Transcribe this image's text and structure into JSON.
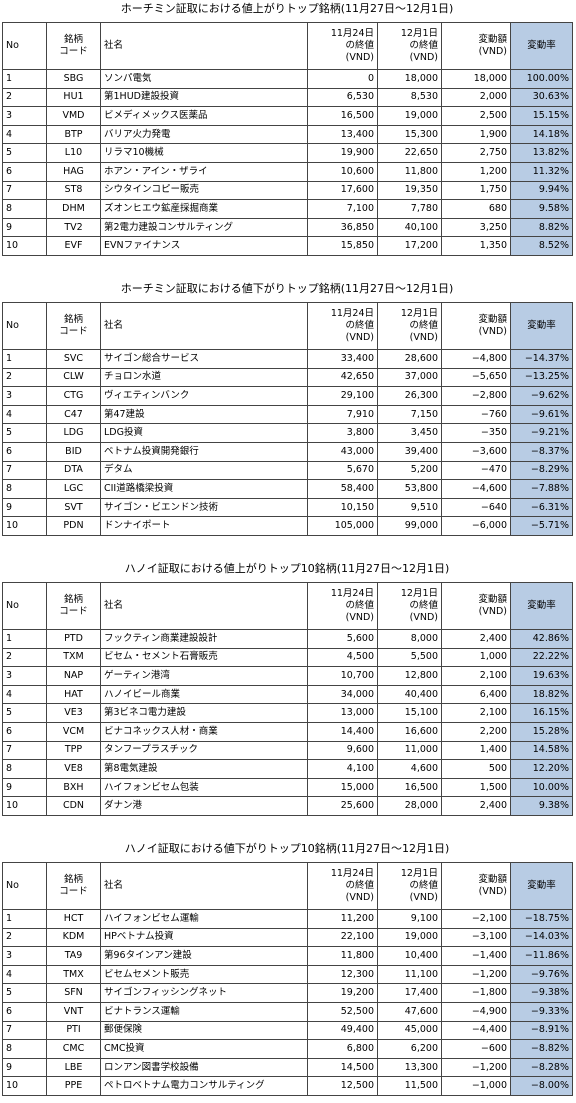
{
  "tables": [
    {
      "title": "ホーチミン証取における値上がりトップ銘柄(11月27日～12月1日)",
      "headers": [
        "No",
        "銘柄\nコード",
        "社名",
        "11月24日\nの終値\n(VND)",
        "12月1日\nの終値\n(VND)",
        "変動額\n(VND)",
        "変動率"
      ],
      "rows": [
        [
          "1",
          "SBG",
          "ソンパ電気",
          "0",
          "18,000",
          "18,000",
          "100.00%"
        ],
        [
          "2",
          "HU1",
          "第1HUD建設投資",
          "6,530",
          "8,530",
          "2,000",
          "30.63%"
        ],
        [
          "3",
          "VMD",
          "ビメディメックス医薬品",
          "16,500",
          "19,000",
          "2,500",
          "15.15%"
        ],
        [
          "4",
          "BTP",
          "バリア火力発電",
          "13,400",
          "15,300",
          "1,900",
          "14.18%"
        ],
        [
          "5",
          "L10",
          "リラマ10機械",
          "19,900",
          "22,650",
          "2,750",
          "13.82%"
        ],
        [
          "6",
          "HAG",
          "ホアン・アイン・ザライ",
          "10,600",
          "11,800",
          "1,200",
          "11.32%"
        ],
        [
          "7",
          "ST8",
          "シウタインコピー販売",
          "17,600",
          "19,350",
          "1,750",
          "9.94%"
        ],
        [
          "8",
          "DHM",
          "ズオンヒエウ鉱産採掘商業",
          "7,100",
          "7,780",
          "680",
          "9.58%"
        ],
        [
          "9",
          "TV2",
          "第2電力建設コンサルティング",
          "36,850",
          "40,100",
          "3,250",
          "8.82%"
        ],
        [
          "10",
          "EVF",
          "EVNファイナンス",
          "15,850",
          "17,200",
          "1,350",
          "8.52%"
        ]
      ]
    },
    {
      "title": "ホーチミン証取における値下がりトップ銘柄(11月27日～12月1日)",
      "headers": [
        "No",
        "銘柄\nコード",
        "社名",
        "11月24日\nの終値\n(VND)",
        "12月1日\nの終値\n(VND)",
        "変動額\n(VND)",
        "変動率"
      ],
      "rows": [
        [
          "1",
          "SVC",
          "サイゴン総合サービス",
          "33,400",
          "28,600",
          "−4,800",
          "−14.37%"
        ],
        [
          "2",
          "CLW",
          "チョロン水道",
          "42,650",
          "37,000",
          "−5,650",
          "−13.25%"
        ],
        [
          "3",
          "CTG",
          "ヴィエティンバンク",
          "29,100",
          "26,300",
          "−2,800",
          "−9.62%"
        ],
        [
          "4",
          "C47",
          "第47建設",
          "7,910",
          "7,150",
          "−760",
          "−9.61%"
        ],
        [
          "5",
          "LDG",
          "LDG投資",
          "3,800",
          "3,450",
          "−350",
          "−9.21%"
        ],
        [
          "6",
          "BID",
          "ベトナム投資開発銀行",
          "43,000",
          "39,400",
          "−3,600",
          "−8.37%"
        ],
        [
          "7",
          "DTA",
          "デタム",
          "5,670",
          "5,200",
          "−470",
          "−8.29%"
        ],
        [
          "8",
          "LGC",
          "CII道路橋梁投資",
          "58,400",
          "53,800",
          "−4,600",
          "−7.88%"
        ],
        [
          "9",
          "SVT",
          "サイゴン・ビエンドン技術",
          "10,150",
          "9,510",
          "−640",
          "−6.31%"
        ],
        [
          "10",
          "PDN",
          "ドンナイポート",
          "105,000",
          "99,000",
          "−6,000",
          "−5.71%"
        ]
      ]
    },
    {
      "title": "ハノイ証取における値上がりトップ10銘柄(11月27日～12月1日)",
      "headers": [
        "No",
        "銘柄\nコード",
        "社名",
        "11月24日\nの終値\n(VND)",
        "12月1日\nの終値\n(VND)",
        "変動額\n(VND)",
        "変動率"
      ],
      "rows": [
        [
          "1",
          "PTD",
          "フックティン商業建設設計",
          "5,600",
          "8,000",
          "2,400",
          "42.86%"
        ],
        [
          "2",
          "TXM",
          "ビセム・セメント石膏販売",
          "4,500",
          "5,500",
          "1,000",
          "22.22%"
        ],
        [
          "3",
          "NAP",
          "ゲーティン港湾",
          "10,700",
          "12,800",
          "2,100",
          "19.63%"
        ],
        [
          "4",
          "HAT",
          "ハノイビール商業",
          "34,000",
          "40,400",
          "6,400",
          "18.82%"
        ],
        [
          "5",
          "VE3",
          "第3ビネコ電力建設",
          "13,000",
          "15,100",
          "2,100",
          "16.15%"
        ],
        [
          "6",
          "VCM",
          "ビナコネックス人材・商業",
          "14,400",
          "16,600",
          "2,200",
          "15.28%"
        ],
        [
          "7",
          "TPP",
          "タンフープラスチック",
          "9,600",
          "11,000",
          "1,400",
          "14.58%"
        ],
        [
          "8",
          "VE8",
          "第8電気建設",
          "4,100",
          "4,600",
          "500",
          "12.20%"
        ],
        [
          "9",
          "BXH",
          "ハイフォンビセム包装",
          "15,000",
          "16,500",
          "1,500",
          "10.00%"
        ],
        [
          "10",
          "CDN",
          "ダナン港",
          "25,600",
          "28,000",
          "2,400",
          "9.38%"
        ]
      ]
    },
    {
      "title": "ハノイ証取における値下がりトップ10銘柄(11月27日～12月1日)",
      "headers": [
        "No",
        "銘柄\nコード",
        "社名",
        "11月24日\nの終値\n(VND)",
        "12月1日\nの終値\n(VND)",
        "変動額\n(VND)",
        "変動率"
      ],
      "rows": [
        [
          "1",
          "HCT",
          "ハイフォンビセム運輸",
          "11,200",
          "9,100",
          "−2,100",
          "−18.75%"
        ],
        [
          "2",
          "KDM",
          "HPベトナム投資",
          "22,100",
          "19,000",
          "−3,100",
          "−14.03%"
        ],
        [
          "3",
          "TA9",
          "第96タインアン建設",
          "11,800",
          "10,400",
          "−1,400",
          "−11.86%"
        ],
        [
          "4",
          "TMX",
          "ビセムセメント販売",
          "12,300",
          "11,100",
          "−1,200",
          "−9.76%"
        ],
        [
          "5",
          "SFN",
          "サイゴンフィッシングネット",
          "19,200",
          "17,400",
          "−1,800",
          "−9.38%"
        ],
        [
          "6",
          "VNT",
          "ビナトランス運輸",
          "52,500",
          "47,600",
          "−4,900",
          "−9.33%"
        ],
        [
          "7",
          "PTI",
          "郵便保険",
          "49,400",
          "45,000",
          "−4,400",
          "−8.91%"
        ],
        [
          "8",
          "CMC",
          "CMC投資",
          "6,800",
          "6,200",
          "−600",
          "−8.82%"
        ],
        [
          "9",
          "LBE",
          "ロンアン図書学校設備",
          "14,500",
          "13,300",
          "−1,200",
          "−8.28%"
        ],
        [
          "10",
          "PPE",
          "ペトロベトナム電力コンサルティング",
          "12,500",
          "11,500",
          "−1,000",
          "−8.00%"
        ]
      ]
    }
  ]
}
